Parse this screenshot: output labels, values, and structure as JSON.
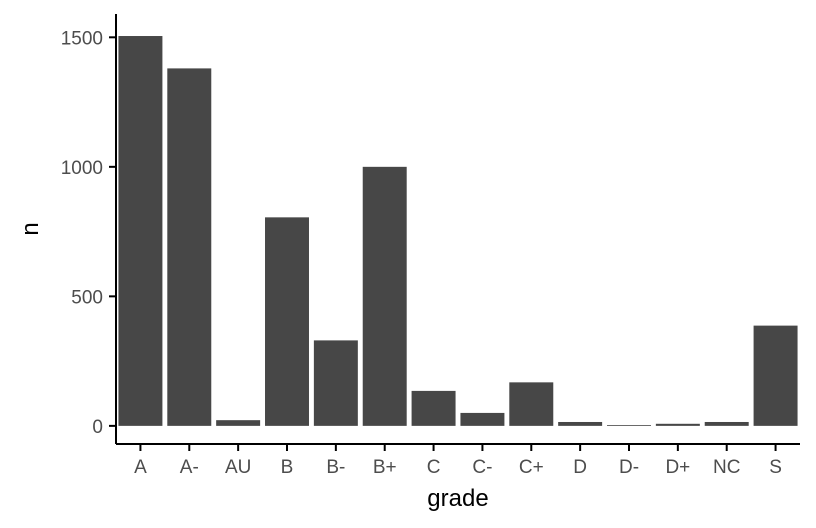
{
  "chart_data": {
    "type": "bar",
    "title": "",
    "xlabel": "grade",
    "ylabel": "n",
    "categories": [
      "A",
      "A-",
      "AU",
      "B",
      "B-",
      "B+",
      "C",
      "C-",
      "C+",
      "D",
      "D-",
      "D+",
      "NC",
      "S"
    ],
    "values": [
      1505,
      1380,
      22,
      805,
      330,
      1000,
      135,
      50,
      168,
      15,
      3,
      8,
      15,
      387
    ],
    "yticks": [
      0,
      500,
      1000,
      1500
    ],
    "ylim": [
      -70,
      1590
    ],
    "grid": false,
    "legend": "none",
    "bar_color": "#474747"
  }
}
